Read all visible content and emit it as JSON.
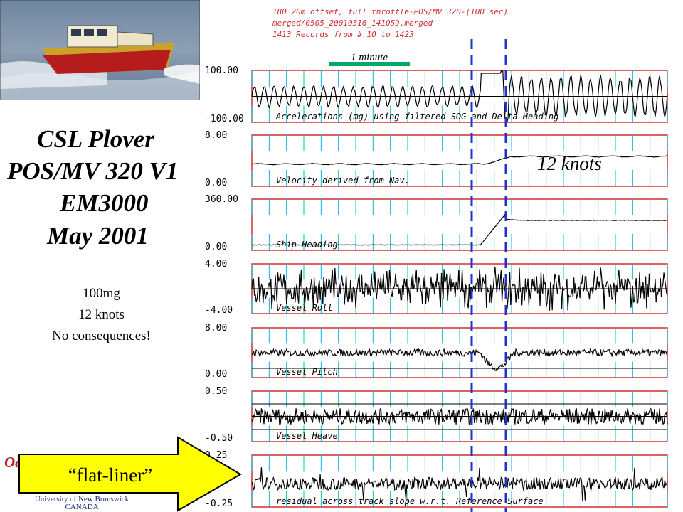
{
  "slide": {
    "title_lines": [
      "CSL Plover",
      "POS/MV 320 V1",
      "EM3000",
      "May 2001"
    ],
    "notes": [
      "100mg",
      "12 knots",
      "No consequences!"
    ],
    "annotation_knots": "12 knots",
    "arrow_label": "“flat-liner”",
    "logo_fragment": "Oc",
    "logo_lines": [
      "University of New Brunswick",
      "CANADA"
    ],
    "colors": {
      "frame": "#d32f2f",
      "grid": "#00bcd4",
      "marker": "#2233cc",
      "arrow_fill": "#ffff00",
      "scale_bar": "#00a86b"
    }
  },
  "chart_header": {
    "line1": "180_20m_offset,_full_throttle-POS/MV_320-(100_sec)",
    "line2": "merged/0505_20010516_141059.merged",
    "line3": "1413 Records from # 10 to 1423"
  },
  "scale_bar_label": "1 minute",
  "chart_data": {
    "type": "line",
    "x_label": "",
    "panels": [
      {
        "label": "Accelerations (mg) using filtered SOG and Delta Heading",
        "y_max": "100.00",
        "y_min": "-100.00",
        "ylim": [
          -100,
          100
        ]
      },
      {
        "label": "Velocity derived from Nav.",
        "y_max": "8.00",
        "y_min": "0.00",
        "ylim": [
          0,
          8
        ]
      },
      {
        "label": "Ship Heading",
        "y_max": "360.00",
        "y_min": "0.00",
        "ylim": [
          0,
          360
        ]
      },
      {
        "label": "Vessel Roll",
        "y_max": "4.00",
        "y_min": "-4.00",
        "ylim": [
          -4,
          4
        ]
      },
      {
        "label": "Vessel Pitch",
        "y_max": "8.00",
        "y_min": "0.00",
        "ylim": [
          0,
          8
        ]
      },
      {
        "label": "Vessel Heave",
        "y_max": "0.50",
        "y_min": "-0.50",
        "ylim": [
          -0.5,
          0.5
        ]
      },
      {
        "label": "residual across track slope w.r.t. Reference Surface",
        "y_max": "0.25",
        "y_min": "-0.25",
        "ylim": [
          -0.25,
          0.25
        ]
      }
    ]
  }
}
